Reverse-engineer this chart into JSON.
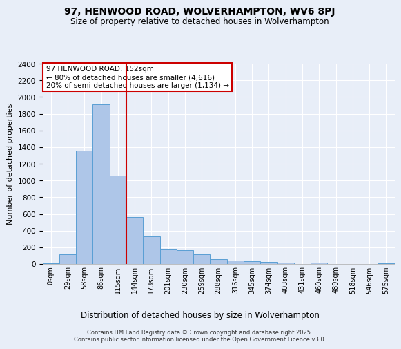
{
  "title": "97, HENWOOD ROAD, WOLVERHAMPTON, WV6 8PJ",
  "subtitle": "Size of property relative to detached houses in Wolverhampton",
  "xlabel": "Distribution of detached houses by size in Wolverhampton",
  "ylabel": "Number of detached properties",
  "footer_line1": "Contains HM Land Registry data © Crown copyright and database right 2025.",
  "footer_line2": "Contains public sector information licensed under the Open Government Licence v3.0.",
  "bin_labels": [
    "0sqm",
    "29sqm",
    "58sqm",
    "86sqm",
    "115sqm",
    "144sqm",
    "173sqm",
    "201sqm",
    "230sqm",
    "259sqm",
    "288sqm",
    "316sqm",
    "345sqm",
    "374sqm",
    "403sqm",
    "431sqm",
    "460sqm",
    "489sqm",
    "518sqm",
    "546sqm",
    "575sqm"
  ],
  "bar_values": [
    10,
    120,
    1360,
    1910,
    1060,
    560,
    335,
    170,
    165,
    115,
    60,
    38,
    30,
    25,
    20,
    0,
    15,
    0,
    0,
    0,
    10
  ],
  "bar_color": "#aec6e8",
  "bar_edgecolor": "#5a9fd4",
  "bg_color": "#e8eef8",
  "grid_color": "#ffffff",
  "vline_x_index": 4.5,
  "vline_color": "#cc0000",
  "annotation_text": "97 HENWOOD ROAD: 152sqm\n← 80% of detached houses are smaller (4,616)\n20% of semi-detached houses are larger (1,134) →",
  "annotation_box_color": "#cc0000",
  "ylim": [
    0,
    2400
  ],
  "yticks": [
    0,
    200,
    400,
    600,
    800,
    1000,
    1200,
    1400,
    1600,
    1800,
    2000,
    2200,
    2400
  ]
}
